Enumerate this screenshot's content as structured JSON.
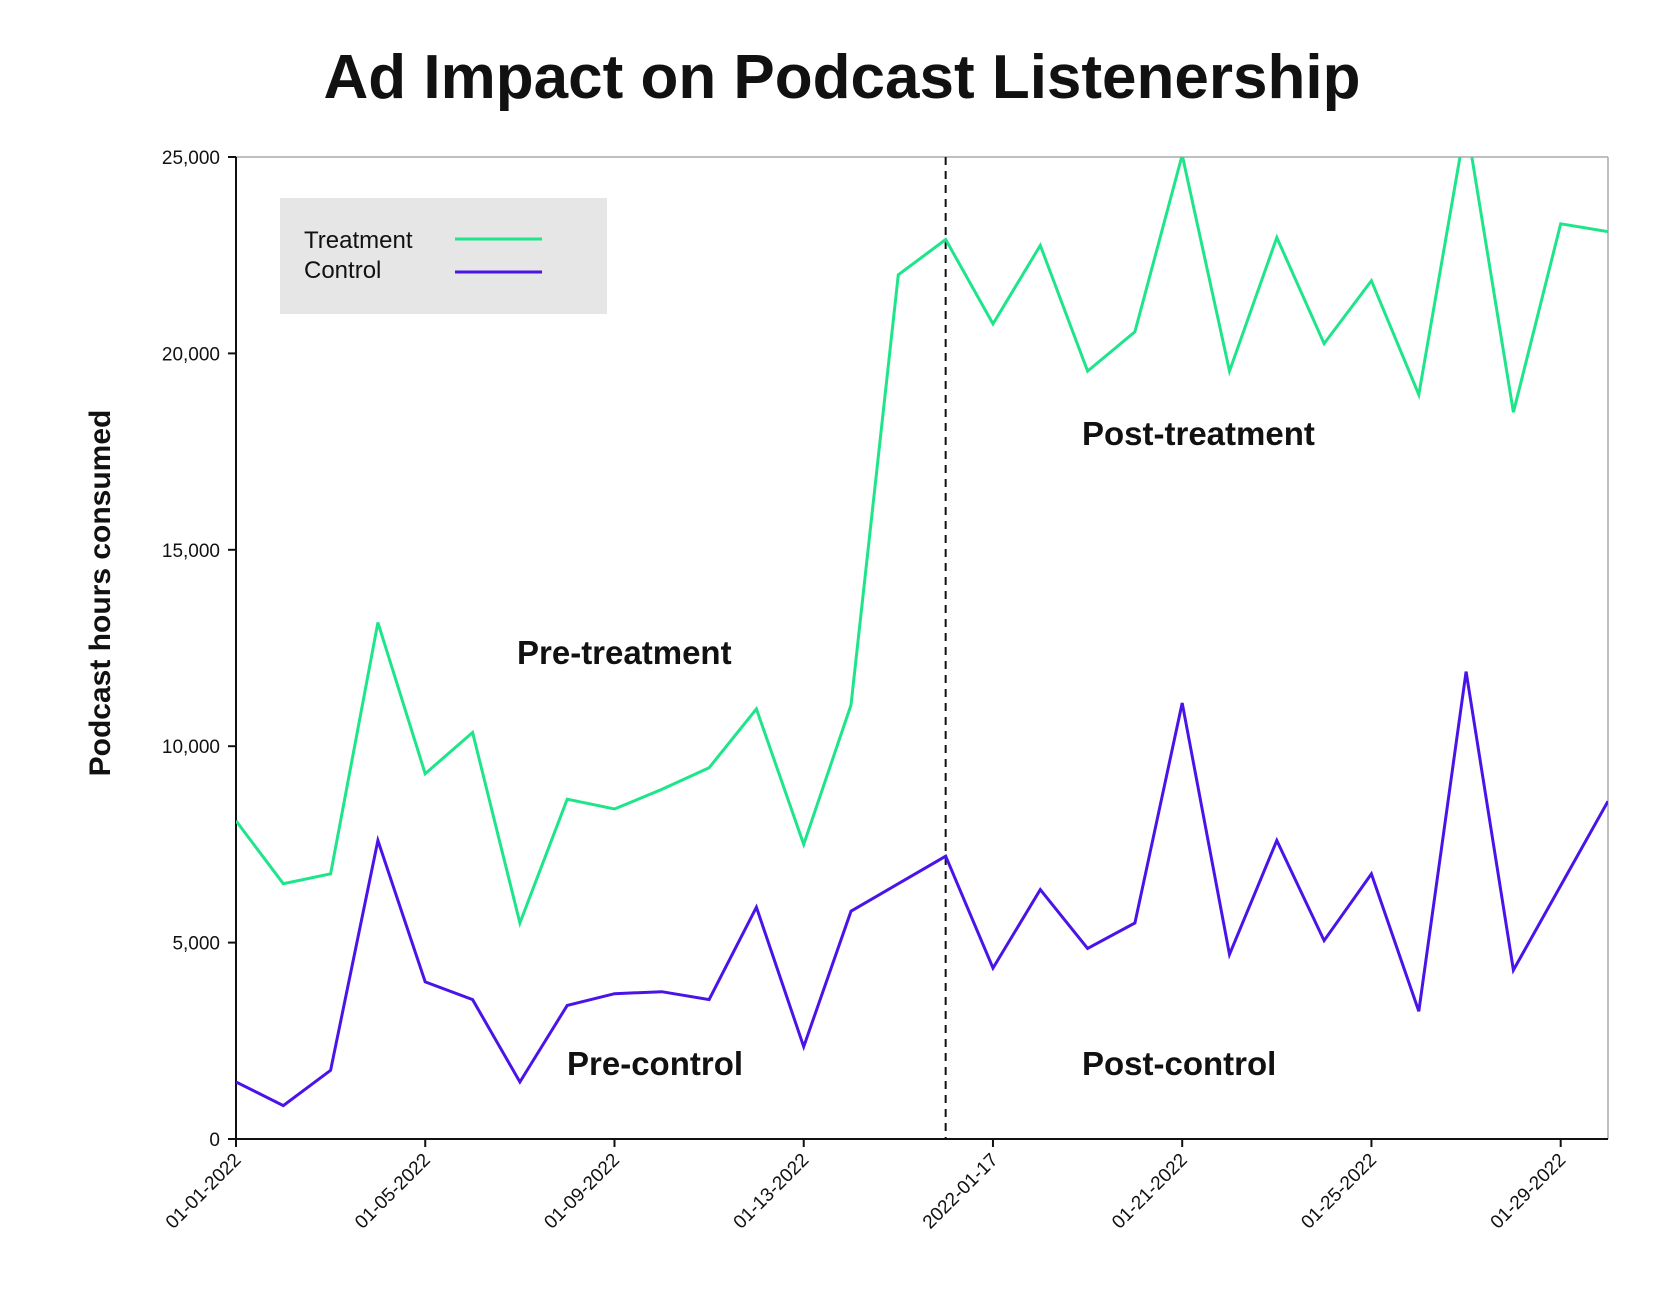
{
  "chart_data": {
    "type": "line",
    "title": "Ad Impact on Podcast Listenership",
    "xlabel": "",
    "ylabel": "Podcast hours consumed",
    "ylim": [
      0,
      25000
    ],
    "yticks": [
      0,
      5000,
      10000,
      15000,
      20000,
      25000
    ],
    "ytick_labels": [
      "0",
      "5,000",
      "10,000",
      "15,000",
      "20,000",
      "25,000"
    ],
    "x_start_day": 1,
    "x_end_day": 30,
    "xticks": [
      1,
      5,
      9,
      13,
      17,
      21,
      25,
      29
    ],
    "xtick_labels": [
      "01-01-2022",
      "01-05-2022",
      "01-09-2022",
      "01-13-2022",
      "2022-01-17",
      "01-21-2022",
      "01-25-2022",
      "01-29-2022"
    ],
    "treatment_start_day": 16,
    "colors": {
      "treatment": "#1fe58a",
      "control": "#4a14e8"
    },
    "legend": {
      "position": "top-left",
      "items": [
        "Treatment",
        "Control"
      ]
    },
    "series": [
      {
        "name": "Treatment",
        "values": [
          8100,
          6500,
          6750,
          13150,
          9300,
          10350,
          5500,
          8650,
          8400,
          8900,
          9450,
          10950,
          7500,
          11050,
          22000,
          22900,
          20750,
          22750,
          19550,
          20550,
          25050,
          19550,
          22950,
          20250,
          21850,
          18950,
          25900,
          18500,
          23300,
          23100
        ]
      },
      {
        "name": "Control",
        "values": [
          1450,
          850,
          1750,
          7600,
          4000,
          3550,
          1450,
          3400,
          3700,
          3750,
          3550,
          5900,
          2350,
          5800,
          6500,
          7200,
          4350,
          6350,
          4850,
          5500,
          11100,
          4700,
          7600,
          5050,
          6750,
          3250,
          11900,
          4300,
          6450,
          8600
        ]
      }
    ],
    "annotations": [
      "Pre-treatment",
      "Post-treatment",
      "Pre-control",
      "Post-control"
    ]
  }
}
